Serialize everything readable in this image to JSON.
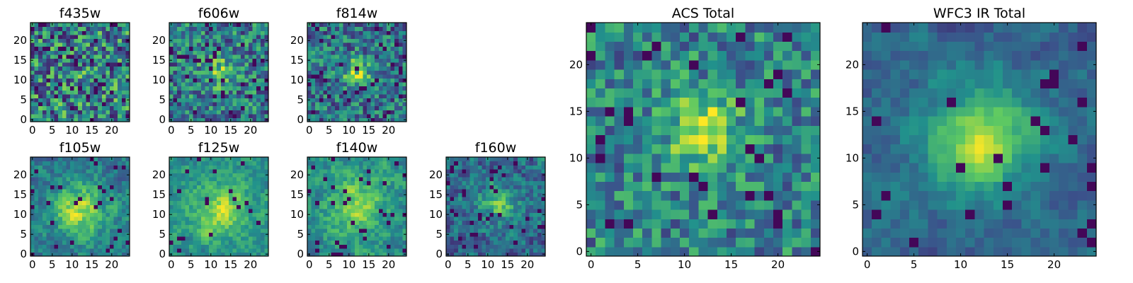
{
  "figure": {
    "colormap": "viridis",
    "grid_size": 25,
    "colors": {
      "viridis": [
        "#440154",
        "#3b528b",
        "#21918c",
        "#5ec962",
        "#fde725"
      ]
    }
  },
  "chart_data": [
    {
      "id": "f435w",
      "type": "heatmap",
      "title": "f435w",
      "xlim": [
        0,
        24
      ],
      "ylim": [
        0,
        24
      ],
      "xticks": [
        "0",
        "5",
        "10",
        "15",
        "20"
      ],
      "yticks": [
        "0",
        "5",
        "10",
        "15",
        "20"
      ],
      "source": {
        "peak_x": 12,
        "peak_y": 11,
        "sigma": 3.0,
        "amplitude": 0.05
      },
      "noise": {
        "base": 0.45,
        "amp": 0.75,
        "dark_frac": 0.07,
        "smooth": 0.0,
        "seed": 11
      }
    },
    {
      "id": "f606w",
      "type": "heatmap",
      "title": "f606w",
      "xlim": [
        0,
        24
      ],
      "ylim": [
        0,
        24
      ],
      "xticks": [
        "0",
        "5",
        "10",
        "15",
        "20"
      ],
      "yticks": [
        "0",
        "5",
        "10",
        "15",
        "20"
      ],
      "source": {
        "peak_x": 12,
        "peak_y": 12,
        "sigma": 3.0,
        "amplitude": 0.3
      },
      "noise": {
        "base": 0.42,
        "amp": 0.6,
        "dark_frac": 0.05,
        "smooth": 0.0,
        "seed": 22
      }
    },
    {
      "id": "f814w",
      "type": "heatmap",
      "title": "f814w",
      "xlim": [
        0,
        24
      ],
      "ylim": [
        0,
        24
      ],
      "xticks": [
        "0",
        "5",
        "10",
        "15",
        "20"
      ],
      "yticks": [
        "0",
        "5",
        "10",
        "15",
        "20"
      ],
      "source": {
        "peak_x": 12,
        "peak_y": 12,
        "sigma": 2.5,
        "amplitude": 0.45
      },
      "noise": {
        "base": 0.38,
        "amp": 0.55,
        "dark_frac": 0.05,
        "smooth": 0.0,
        "seed": 33
      }
    },
    {
      "id": "f105w",
      "type": "heatmap",
      "title": "f105w",
      "xlim": [
        0,
        24
      ],
      "ylim": [
        0,
        24
      ],
      "xticks": [
        "0",
        "5",
        "10",
        "15",
        "20"
      ],
      "yticks": [
        "0",
        "5",
        "10",
        "15",
        "20"
      ],
      "source": {
        "peak_x": 12,
        "peak_y": 11,
        "sigma": 5.0,
        "amplitude": 0.45
      },
      "noise": {
        "base": 0.4,
        "amp": 0.5,
        "dark_frac": 0.05,
        "smooth": 0.5,
        "seed": 44
      }
    },
    {
      "id": "f125w",
      "type": "heatmap",
      "title": "f125w",
      "xlim": [
        0,
        24
      ],
      "ylim": [
        0,
        24
      ],
      "xticks": [
        "0",
        "5",
        "10",
        "15",
        "20"
      ],
      "yticks": [
        "0",
        "5",
        "10",
        "15",
        "20"
      ],
      "source": {
        "peak_x": 12,
        "peak_y": 11,
        "sigma": 5.0,
        "amplitude": 0.35
      },
      "noise": {
        "base": 0.5,
        "amp": 0.45,
        "dark_frac": 0.03,
        "smooth": 0.5,
        "seed": 55
      }
    },
    {
      "id": "f140w",
      "type": "heatmap",
      "title": "f140w",
      "xlim": [
        0,
        24
      ],
      "ylim": [
        0,
        24
      ],
      "xticks": [
        "0",
        "5",
        "10",
        "15",
        "20"
      ],
      "yticks": [
        "0",
        "5",
        "10",
        "15",
        "20"
      ],
      "source": {
        "peak_x": 12,
        "peak_y": 12,
        "sigma": 5.0,
        "amplitude": 0.3
      },
      "noise": {
        "base": 0.5,
        "amp": 0.5,
        "dark_frac": 0.04,
        "smooth": 0.5,
        "seed": 66
      }
    },
    {
      "id": "f160w",
      "type": "heatmap",
      "title": "f160w",
      "xlim": [
        0,
        24
      ],
      "ylim": [
        0,
        24
      ],
      "xticks": [
        "0",
        "5",
        "10",
        "15",
        "20"
      ],
      "yticks": [
        "0",
        "5",
        "10",
        "15",
        "20"
      ],
      "source": {
        "peak_x": 13,
        "peak_y": 13,
        "sigma": 3.0,
        "amplitude": 0.4
      },
      "noise": {
        "base": 0.35,
        "amp": 0.55,
        "dark_frac": 0.06,
        "smooth": 0.4,
        "seed": 77
      }
    },
    {
      "id": "acs-total",
      "type": "heatmap",
      "title": "ACS Total",
      "xlim": [
        0,
        24
      ],
      "ylim": [
        0,
        24
      ],
      "xticks": [
        "0",
        "5",
        "10",
        "15",
        "20"
      ],
      "yticks": [
        "0",
        "5",
        "10",
        "15",
        "20"
      ],
      "source": {
        "peak_x": 12,
        "peak_y": 13,
        "sigma": 2.6,
        "amplitude": 0.5
      },
      "noise": {
        "base": 0.45,
        "amp": 0.5,
        "dark_frac": 0.04,
        "smooth": 0.0,
        "seed": 88
      }
    },
    {
      "id": "wfc3-ir-total",
      "type": "heatmap",
      "title": "WFC3 IR Total",
      "xlim": [
        0,
        24
      ],
      "ylim": [
        0,
        24
      ],
      "xticks": [
        "0",
        "5",
        "10",
        "15",
        "20"
      ],
      "yticks": [
        "0",
        "5",
        "10",
        "15",
        "20"
      ],
      "source": {
        "peak_x": 12,
        "peak_y": 12,
        "sigma": 4.0,
        "amplitude": 0.55
      },
      "noise": {
        "base": 0.33,
        "amp": 0.4,
        "dark_frac": 0.05,
        "smooth": 0.6,
        "seed": 99
      }
    }
  ]
}
